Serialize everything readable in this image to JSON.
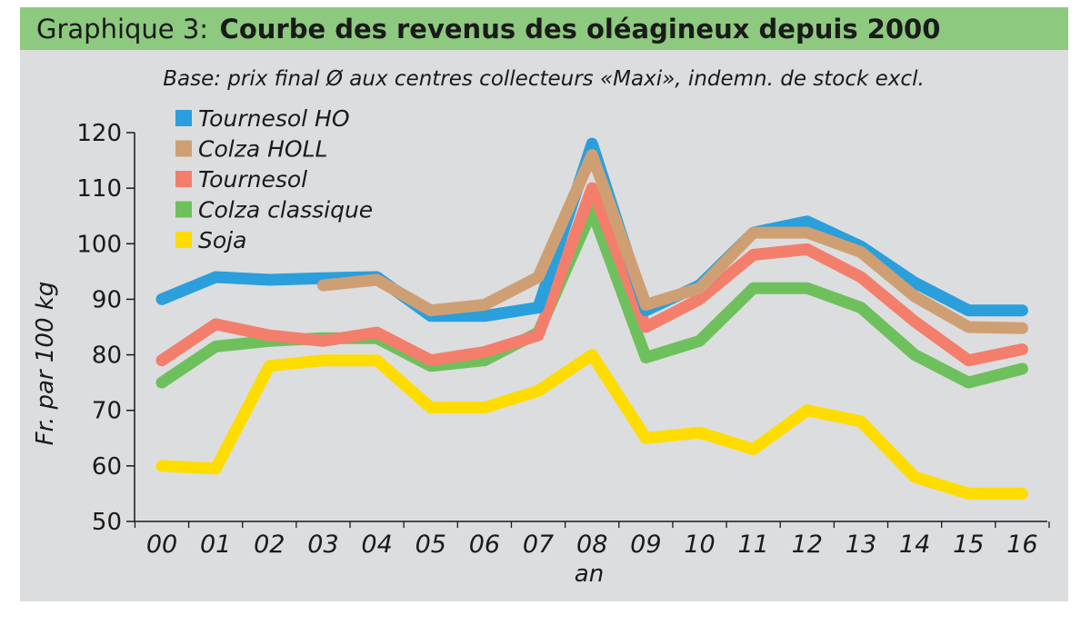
{
  "header": {
    "prefix": "Graphique 3:",
    "title": "Courbe des revenus des oléagineux depuis 2000",
    "band_color": "#8dc97f"
  },
  "chart_data": {
    "type": "line",
    "title": "Courbe des revenus des oléagineux depuis 2000",
    "subtitle": "Base: prix final Ø aux centres collecteurs «Maxi», indemn. de stock excl.",
    "xlabel": "an",
    "ylabel": "Fr. par 100 kg",
    "ylim": [
      50,
      120
    ],
    "yticks": [
      50,
      60,
      70,
      80,
      90,
      100,
      110,
      120
    ],
    "grid": false,
    "background": "#dcdddf",
    "legend_position": "top-left",
    "categories": [
      "00",
      "01",
      "02",
      "03",
      "04",
      "05",
      "06",
      "07",
      "08",
      "09",
      "10",
      "11",
      "12",
      "13",
      "14",
      "15",
      "16"
    ],
    "series": [
      {
        "name": "Tournesol HO",
        "color": "#2a9fdc",
        "values": [
          90,
          94,
          93.5,
          93.8,
          94,
          87,
          87,
          88.5,
          118,
          88,
          92.5,
          102,
          104,
          99.5,
          93,
          88,
          88
        ]
      },
      {
        "name": "Colza HOLL",
        "color": "#cf9f74",
        "values": [
          null,
          null,
          null,
          92.5,
          93.5,
          88,
          89,
          94,
          116,
          89,
          92,
          102,
          102,
          98.5,
          90.5,
          85,
          84.8
        ]
      },
      {
        "name": "Tournesol",
        "color": "#f47e6c",
        "values": [
          79,
          85.5,
          83.5,
          82.5,
          84,
          79,
          80.5,
          83.5,
          110,
          85,
          90,
          98,
          99,
          94,
          86,
          79,
          81
        ]
      },
      {
        "name": "Colza classique",
        "color": "#6ec05c",
        "values": [
          75,
          81.5,
          82.5,
          83,
          83,
          78,
          79,
          84,
          106,
          79.5,
          82.5,
          92,
          92,
          88.5,
          80,
          75,
          77.5
        ]
      },
      {
        "name": "Soja",
        "color": "#ffdc00",
        "values": [
          60,
          59.5,
          78,
          79,
          79,
          70.5,
          70.5,
          73.5,
          80,
          65,
          66,
          63,
          70,
          68,
          58,
          55,
          55
        ]
      }
    ]
  }
}
